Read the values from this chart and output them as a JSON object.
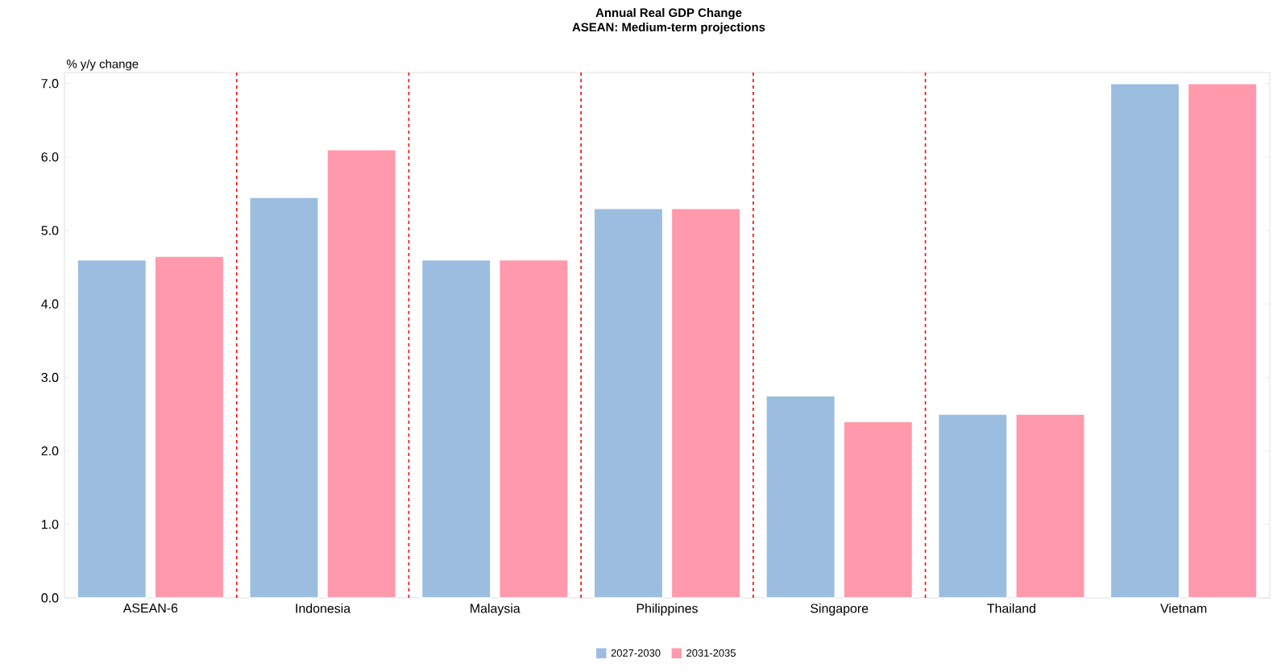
{
  "chart_data": {
    "type": "bar",
    "title": "Annual Real GDP Change",
    "subtitle": "ASEAN: Medium-term projections",
    "ylabel": "% y/y change",
    "categories": [
      "ASEAN-6",
      "Indonesia",
      "Malaysia",
      "Philippines",
      "Singapore",
      "Thailand",
      "Vietnam"
    ],
    "series": [
      {
        "name": "2027-2030",
        "color": "#9bbde0",
        "values": [
          4.6,
          5.45,
          4.6,
          5.3,
          2.75,
          2.5,
          7.0
        ]
      },
      {
        "name": "2031-2035",
        "color": "#ff99ab",
        "values": [
          4.65,
          6.1,
          4.6,
          5.3,
          2.4,
          2.5,
          7.0
        ]
      }
    ],
    "ylim": [
      0,
      7.15
    ],
    "yticks": [
      {
        "value": 0,
        "label": "0.0"
      },
      {
        "value": 1,
        "label": "1.0"
      },
      {
        "value": 2,
        "label": "2.0"
      },
      {
        "value": 3,
        "label": "3.0"
      },
      {
        "value": 4,
        "label": "4.0"
      },
      {
        "value": 5,
        "label": "5.0"
      },
      {
        "value": 6,
        "label": "6.0"
      },
      {
        "value": 7,
        "label": "7.0"
      }
    ],
    "grid": false,
    "legend": "bottom"
  }
}
